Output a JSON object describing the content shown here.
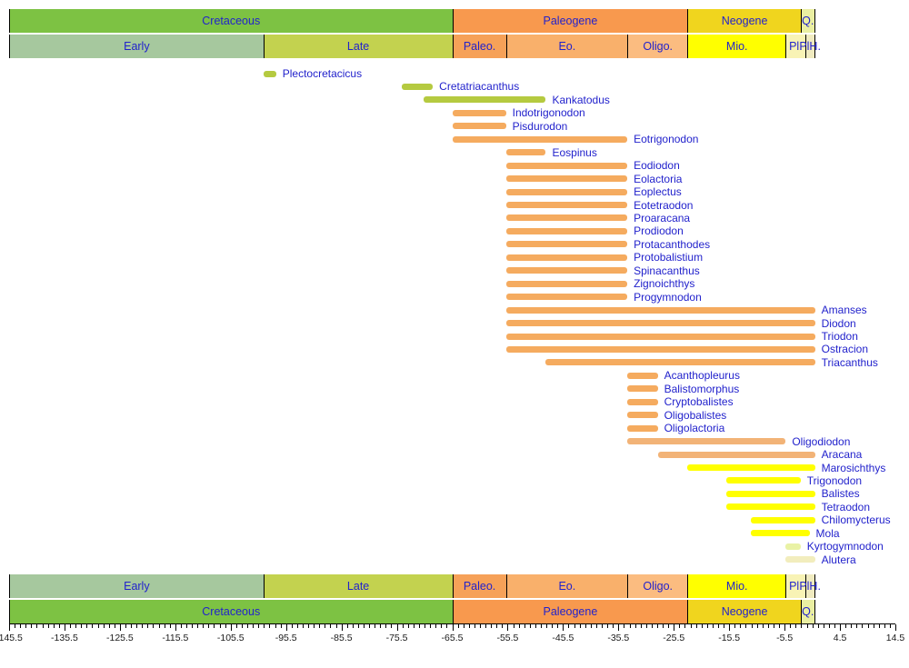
{
  "colors": {
    "label_text": "#2222CC",
    "tick_text": "#1a1a1a",
    "background": "#FFFFFF",
    "cell_colors": {
      "cretaceous": "#7DC243",
      "early_k": "#A6C89E",
      "late_k": "#C3D24F",
      "paleogene": "#F8994E",
      "paleocene": "#F6A158",
      "eocene": "#F9B06B",
      "oligocene": "#FBBC80",
      "neogene": "#F0D51E",
      "miocene": "#FFFF00",
      "pliocene": "#F8F3B5",
      "pleist_holo": "#F0EBC0",
      "quaternary": "#EAEFA2"
    },
    "bar_colors": {
      "green": "#B5CA40",
      "orange": "#F5AB5F",
      "tan": "#F2B377",
      "yellow": "#FFFF00",
      "palegreen": "#E9F2A5",
      "cream": "#F2EDBD"
    }
  },
  "chart_data": {
    "type": "bar",
    "subtype": "horizontal-range-chart (stratigraphic ranges of taxa)",
    "title": "",
    "xlabel": "",
    "ylabel": "",
    "legend": "none",
    "grid": false,
    "axis": {
      "min": -145.5,
      "max": 14.5,
      "major_step": 10,
      "minor_step": 1,
      "major_ticks": [
        -145.5,
        -135.5,
        -125.5,
        -115.5,
        -105.5,
        -95.5,
        -85.5,
        -75.5,
        -65.5,
        -55.5,
        -45.5,
        -35.5,
        -25.5,
        -15.5,
        -5.5,
        4.5,
        14.5
      ],
      "tick_labels": [
        "-145.5",
        "-135.5",
        "-125.5",
        "-115.5",
        "-105.5",
        "-95.5",
        "-85.5",
        "-75.5",
        "-65.5",
        "-55.5",
        "-45.5",
        "-35.5",
        "-25.5",
        "-15.5",
        "-5.5",
        "4.5",
        "14.5"
      ]
    },
    "periods": [
      {
        "label": "Cretaceous",
        "from": -145.5,
        "to": -65.5,
        "color": "cretaceous"
      },
      {
        "label": "Paleogene",
        "from": -65.5,
        "to": -23.03,
        "color": "paleogene"
      },
      {
        "label": "Neogene",
        "from": -23.03,
        "to": -2.588,
        "color": "neogene"
      },
      {
        "label": "Q.",
        "from": -2.588,
        "to": 0,
        "color": "quaternary"
      }
    ],
    "epochs": [
      {
        "label": "Early",
        "from": -145.5,
        "to": -99.6,
        "color": "early_k"
      },
      {
        "label": "Late",
        "from": -99.6,
        "to": -65.5,
        "color": "late_k"
      },
      {
        "label": "Paleo.",
        "from": -65.5,
        "to": -55.8,
        "color": "paleocene"
      },
      {
        "label": "Eo.",
        "from": -55.8,
        "to": -33.9,
        "color": "eocene"
      },
      {
        "label": "Oligo.",
        "from": -33.9,
        "to": -23.03,
        "color": "oligocene"
      },
      {
        "label": "Mio.",
        "from": -23.03,
        "to": -5.332,
        "color": "miocene"
      },
      {
        "label": "Pl.",
        "from": -5.332,
        "to": -1.806,
        "color": "pliocene"
      },
      {
        "label": "PlH.",
        "from": -1.806,
        "to": 0,
        "color": "pleist_holo"
      }
    ],
    "taxa": [
      {
        "name": "Plectocretacicus",
        "from": -99.6,
        "to": -97.3,
        "color": "green"
      },
      {
        "name": "Cretatriacanthus",
        "from": -74.6,
        "to": -69.0,
        "color": "green"
      },
      {
        "name": "Kankatodus",
        "from": -70.6,
        "to": -48.6,
        "color": "green"
      },
      {
        "name": "Indotrigonodon",
        "from": -65.5,
        "to": -55.8,
        "color": "orange"
      },
      {
        "name": "Pisdurodon",
        "from": -65.5,
        "to": -55.8,
        "color": "orange"
      },
      {
        "name": "Eotrigonodon",
        "from": -65.5,
        "to": -33.9,
        "color": "orange"
      },
      {
        "name": "Eospinus",
        "from": -55.8,
        "to": -48.6,
        "color": "orange"
      },
      {
        "name": "Eodiodon",
        "from": -55.8,
        "to": -33.9,
        "color": "orange"
      },
      {
        "name": "Eolactoria",
        "from": -55.8,
        "to": -33.9,
        "color": "orange"
      },
      {
        "name": "Eoplectus",
        "from": -55.8,
        "to": -33.9,
        "color": "orange"
      },
      {
        "name": "Eotetraodon",
        "from": -55.8,
        "to": -33.9,
        "color": "orange"
      },
      {
        "name": "Proaracana",
        "from": -55.8,
        "to": -33.9,
        "color": "orange"
      },
      {
        "name": "Prodiodon",
        "from": -55.8,
        "to": -33.9,
        "color": "orange"
      },
      {
        "name": "Protacanthodes",
        "from": -55.8,
        "to": -33.9,
        "color": "orange"
      },
      {
        "name": "Protobalistium",
        "from": -55.8,
        "to": -33.9,
        "color": "orange"
      },
      {
        "name": "Spinacanthus",
        "from": -55.8,
        "to": -33.9,
        "color": "orange"
      },
      {
        "name": "Zignoichthys",
        "from": -55.8,
        "to": -33.9,
        "color": "orange"
      },
      {
        "name": "Progymnodon",
        "from": -55.8,
        "to": -33.9,
        "color": "orange"
      },
      {
        "name": "Amanses",
        "from": -55.8,
        "to": 0,
        "color": "orange"
      },
      {
        "name": "Diodon",
        "from": -55.8,
        "to": 0,
        "color": "orange"
      },
      {
        "name": "Triodon",
        "from": -55.8,
        "to": 0,
        "color": "orange"
      },
      {
        "name": "Ostracion",
        "from": -55.8,
        "to": 0,
        "color": "orange"
      },
      {
        "name": "Triacanthus",
        "from": -48.6,
        "to": 0,
        "color": "orange"
      },
      {
        "name": "Acanthopleurus",
        "from": -33.9,
        "to": -28.4,
        "color": "orange"
      },
      {
        "name": "Balistomorphus",
        "from": -33.9,
        "to": -28.4,
        "color": "orange"
      },
      {
        "name": "Cryptobalistes",
        "from": -33.9,
        "to": -28.4,
        "color": "orange"
      },
      {
        "name": "Oligobalistes",
        "from": -33.9,
        "to": -28.4,
        "color": "orange"
      },
      {
        "name": "Oligolactoria",
        "from": -33.9,
        "to": -28.4,
        "color": "orange"
      },
      {
        "name": "Oligodiodon",
        "from": -33.9,
        "to": -5.3,
        "color": "tan"
      },
      {
        "name": "Aracana",
        "from": -28.4,
        "to": 0,
        "color": "tan"
      },
      {
        "name": "Marosichthys",
        "from": -23.0,
        "to": 0,
        "color": "yellow"
      },
      {
        "name": "Trigonodon",
        "from": -16.0,
        "to": -2.6,
        "color": "yellow"
      },
      {
        "name": "Balistes",
        "from": -16.0,
        "to": 0,
        "color": "yellow"
      },
      {
        "name": "Tetraodon",
        "from": -16.0,
        "to": 0,
        "color": "yellow"
      },
      {
        "name": "Chilomycterus",
        "from": -11.6,
        "to": 0,
        "color": "yellow"
      },
      {
        "name": "Mola",
        "from": -11.6,
        "to": -1.0,
        "color": "yellow"
      },
      {
        "name": "Kyrtogymnodon",
        "from": -5.3,
        "to": -2.6,
        "color": "palegreen"
      },
      {
        "name": "Alutera",
        "from": -5.3,
        "to": 0,
        "color": "cream"
      }
    ]
  }
}
